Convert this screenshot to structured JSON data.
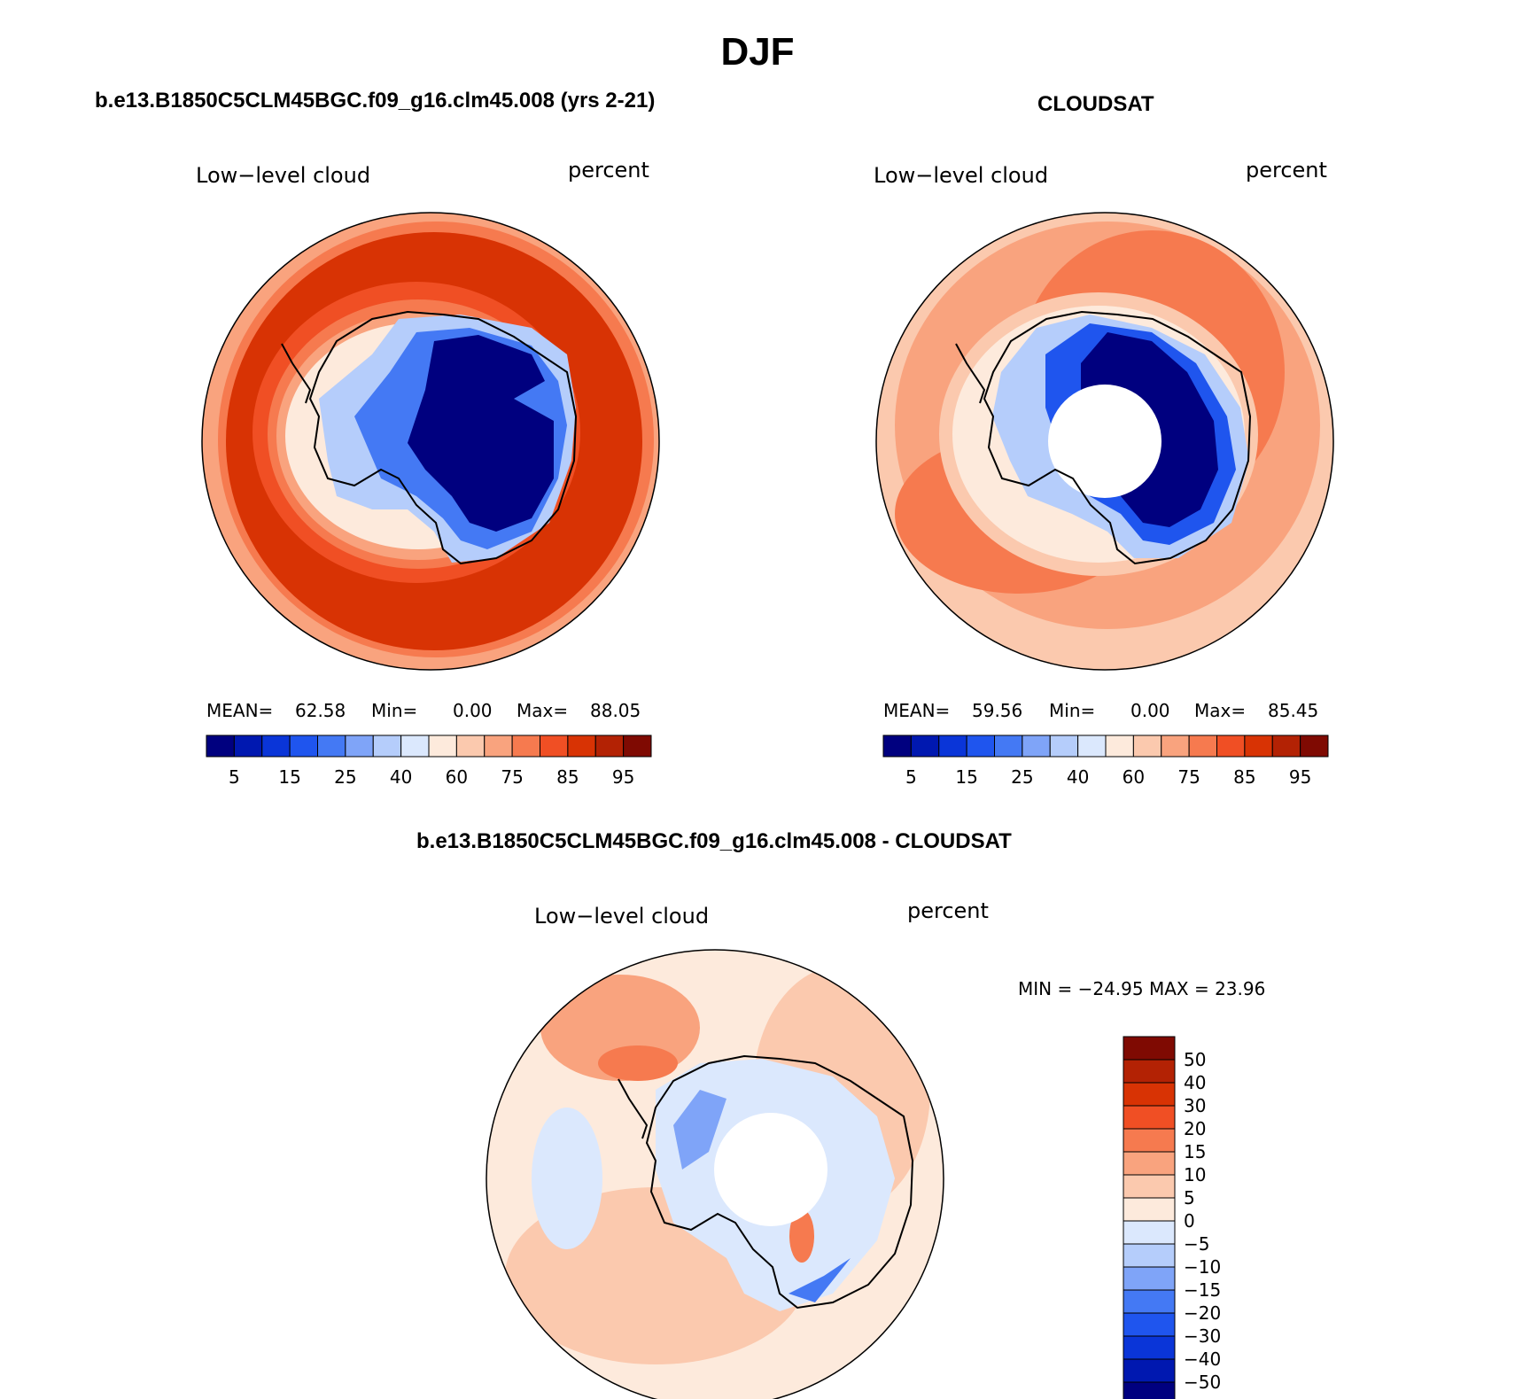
{
  "title": "DJF",
  "colors": {
    "abs_levels": [
      "#00007f",
      "#0018b0",
      "#0a35d8",
      "#1f55ee",
      "#4479f4",
      "#7fa4f8",
      "#b5cdfb",
      "#dbe8fd",
      "#fdeadc",
      "#fbc9ae",
      "#f9a37e",
      "#f67a4f",
      "#f04f24",
      "#d83304",
      "#b32204",
      "#7f0a02"
    ],
    "diff_levels": [
      "#00007f",
      "#0018b0",
      "#0a35d8",
      "#1f55ee",
      "#4479f4",
      "#7fa4f8",
      "#b5cdfb",
      "#dbe8fd",
      "#fdeadc",
      "#fbc9ae",
      "#f9a37e",
      "#f67a4f",
      "#f04f24",
      "#d83304",
      "#b32204",
      "#7f0a02"
    ]
  },
  "panels": {
    "model": {
      "title": "b.e13.B1850C5CLM45BGC.f09_g16.clm45.008 (yrs 2-21)",
      "variable": "Low−level cloud",
      "units": "percent",
      "mean_label": "MEAN=",
      "mean": "62.58",
      "min_label": "Min=",
      "min": "0.00",
      "max_label": "Max=",
      "max": "88.05",
      "colorbar_ticks": [
        "5",
        "15",
        "25",
        "40",
        "60",
        "75",
        "85",
        "95"
      ]
    },
    "obs": {
      "title": "CLOUDSAT",
      "variable": "Low−level cloud",
      "units": "percent",
      "mean_label": "MEAN=",
      "mean": "59.56",
      "min_label": "Min=",
      "min": "0.00",
      "max_label": "Max=",
      "max": "85.45",
      "colorbar_ticks": [
        "5",
        "15",
        "25",
        "40",
        "60",
        "75",
        "85",
        "95"
      ]
    },
    "diff": {
      "title": "b.e13.B1850C5CLM45BGC.f09_g16.clm45.008 - CLOUDSAT",
      "variable": "Low−level cloud",
      "units": "percent",
      "minmax_label": "MIN = −24.95 MAX =   23.96",
      "colorbar_ticks": [
        "50",
        "40",
        "30",
        "20",
        "15",
        "10",
        "5",
        "0",
        "−5",
        "−10",
        "−15",
        "−20",
        "−30",
        "−40",
        "−50"
      ]
    }
  }
}
